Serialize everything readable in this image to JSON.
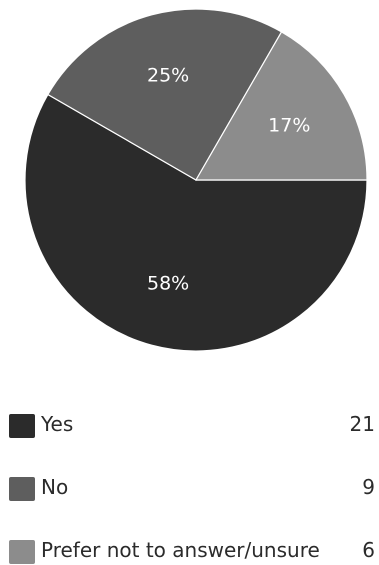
{
  "chart_data": {
    "type": "pie",
    "categories": [
      "Yes",
      "No",
      "Prefer not to answer/unsure"
    ],
    "values": [
      21,
      9,
      6
    ],
    "percent_labels": [
      "58%",
      "25%",
      "17%"
    ],
    "colors": [
      "#2b2b2b",
      "#5e5e5e",
      "#8c8c8c"
    ],
    "legend_position": "bottom"
  },
  "legend": {
    "items": [
      {
        "label": "Yes",
        "count": "21",
        "color": "#2b2b2b"
      },
      {
        "label": "No",
        "count": "9",
        "color": "#5e5e5e"
      },
      {
        "label": "Prefer not to answer/unsure",
        "count": "6",
        "color": "#8c8c8c"
      }
    ]
  }
}
